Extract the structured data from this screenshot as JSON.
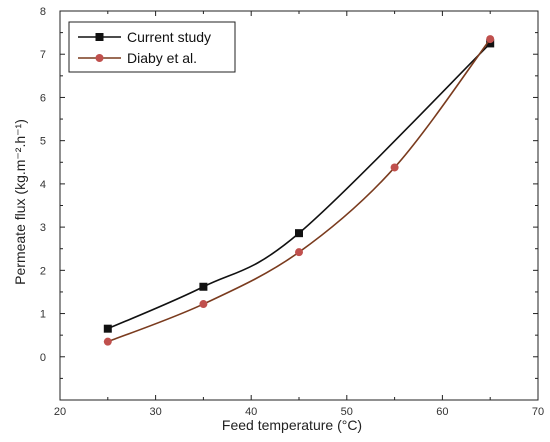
{
  "chart_data": {
    "type": "line",
    "xlabel": "Feed temperature (°C)",
    "ylabel": "Permeate flux (kg.m⁻².h⁻¹)",
    "xlim": [
      20,
      70
    ],
    "ylim": [
      -1,
      8
    ],
    "xticks": [
      20,
      30,
      40,
      50,
      60,
      70
    ],
    "yticks": [
      0,
      1,
      2,
      3,
      4,
      5,
      6,
      7,
      8
    ],
    "legend_position": "top-left",
    "grid": false,
    "series": [
      {
        "name": "Current study",
        "color": "#111111",
        "marker": "square",
        "x": [
          25,
          35,
          45,
          65
        ],
        "y": [
          0.65,
          1.62,
          2.86,
          7.25
        ]
      },
      {
        "name": "Diaby et al.",
        "color": "#7a3b1e",
        "marker_color": "#c0504d",
        "marker": "circle",
        "x": [
          25,
          35,
          45,
          55,
          65
        ],
        "y": [
          0.35,
          1.22,
          2.42,
          4.38,
          7.35
        ]
      }
    ]
  }
}
